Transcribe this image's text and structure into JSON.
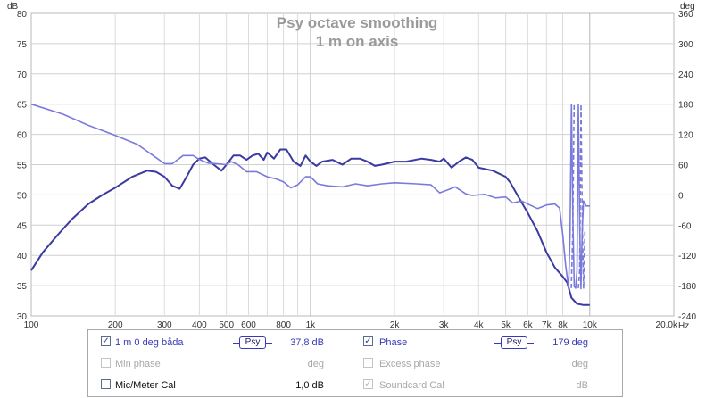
{
  "chart_data": {
    "type": "line",
    "title": "Psy octave smoothing",
    "subtitle": "1 m on axis",
    "left_axis": {
      "unit": "dB",
      "min": 30,
      "max": 80,
      "ticks": [
        "80",
        "75",
        "70",
        "65",
        "60",
        "55",
        "50",
        "45",
        "40",
        "35",
        "30"
      ]
    },
    "right_axis": {
      "unit": "deg",
      "min": -240,
      "max": 360,
      "ticks": [
        "360",
        "300",
        "240",
        "180",
        "120",
        "60",
        "0",
        "-60",
        "-120",
        "-180",
        "-240"
      ]
    },
    "x_axis": {
      "scale": "log",
      "min": 100,
      "max": 20000,
      "unit": "Hz",
      "tick_labels": [
        {
          "f": 100,
          "label": "100"
        },
        {
          "f": 200,
          "label": "200"
        },
        {
          "f": 300,
          "label": "300"
        },
        {
          "f": 400,
          "label": "400"
        },
        {
          "f": 500,
          "label": "500"
        },
        {
          "f": 600,
          "label": "600"
        },
        {
          "f": 800,
          "label": "800"
        },
        {
          "f": 1000,
          "label": "1k"
        },
        {
          "f": 2000,
          "label": "2k"
        },
        {
          "f": 3000,
          "label": "3k"
        },
        {
          "f": 4000,
          "label": "4k"
        },
        {
          "f": 5000,
          "label": "5k"
        },
        {
          "f": 6000,
          "label": "6k"
        },
        {
          "f": 7000,
          "label": "7k"
        },
        {
          "f": 8000,
          "label": "8k"
        },
        {
          "f": 10000,
          "label": "10k"
        },
        {
          "f": 20000,
          "label": "20,0k"
        }
      ]
    },
    "grid": true,
    "series": [
      {
        "name": "1 m 0 deg båda",
        "axis": "left",
        "color": "#3a3aa0",
        "points": [
          [
            100,
            37.5
          ],
          [
            110,
            40.5
          ],
          [
            125,
            43.5
          ],
          [
            140,
            46
          ],
          [
            160,
            48.5
          ],
          [
            180,
            50
          ],
          [
            200,
            51.2
          ],
          [
            230,
            53
          ],
          [
            260,
            54
          ],
          [
            280,
            53.8
          ],
          [
            300,
            53
          ],
          [
            320,
            51.5
          ],
          [
            340,
            51
          ],
          [
            360,
            53
          ],
          [
            380,
            55
          ],
          [
            400,
            56
          ],
          [
            420,
            56.2
          ],
          [
            450,
            55
          ],
          [
            480,
            54
          ],
          [
            500,
            55
          ],
          [
            530,
            56.5
          ],
          [
            560,
            56.5
          ],
          [
            590,
            55.8
          ],
          [
            620,
            56.5
          ],
          [
            650,
            56.8
          ],
          [
            680,
            55.8
          ],
          [
            700,
            57
          ],
          [
            740,
            56
          ],
          [
            780,
            57.5
          ],
          [
            820,
            57.5
          ],
          [
            870,
            55.5
          ],
          [
            920,
            54.8
          ],
          [
            960,
            56.5
          ],
          [
            1000,
            55.5
          ],
          [
            1050,
            54.8
          ],
          [
            1100,
            55.5
          ],
          [
            1200,
            55.8
          ],
          [
            1300,
            55
          ],
          [
            1400,
            56
          ],
          [
            1500,
            56
          ],
          [
            1600,
            55.5
          ],
          [
            1700,
            54.8
          ],
          [
            1800,
            55
          ],
          [
            2000,
            55.5
          ],
          [
            2200,
            55.5
          ],
          [
            2500,
            56
          ],
          [
            2700,
            55.8
          ],
          [
            2900,
            55.5
          ],
          [
            3000,
            56
          ],
          [
            3200,
            54.5
          ],
          [
            3400,
            55.5
          ],
          [
            3600,
            56.2
          ],
          [
            3800,
            55.8
          ],
          [
            4000,
            54.5
          ],
          [
            4500,
            54
          ],
          [
            5000,
            53
          ],
          [
            5200,
            52
          ],
          [
            5500,
            50
          ],
          [
            6000,
            47
          ],
          [
            6500,
            44
          ],
          [
            7000,
            40.5
          ],
          [
            7500,
            38
          ],
          [
            8000,
            36.5
          ],
          [
            8300,
            35.5
          ],
          [
            8600,
            33
          ],
          [
            9000,
            32
          ],
          [
            9500,
            31.8
          ],
          [
            10000,
            31.8
          ]
        ]
      },
      {
        "name": "Phase",
        "axis": "right",
        "color": "#7a7adc",
        "points": [
          [
            100,
            180
          ],
          [
            130,
            160
          ],
          [
            160,
            138
          ],
          [
            200,
            118
          ],
          [
            240,
            100
          ],
          [
            270,
            80
          ],
          [
            300,
            62
          ],
          [
            320,
            62
          ],
          [
            350,
            78
          ],
          [
            380,
            78
          ],
          [
            400,
            70
          ],
          [
            430,
            63
          ],
          [
            460,
            62
          ],
          [
            500,
            60
          ],
          [
            520,
            66
          ],
          [
            550,
            60
          ],
          [
            590,
            46
          ],
          [
            640,
            46
          ],
          [
            700,
            36
          ],
          [
            750,
            32
          ],
          [
            800,
            26
          ],
          [
            850,
            14
          ],
          [
            900,
            20
          ],
          [
            960,
            36
          ],
          [
            1000,
            36
          ],
          [
            1060,
            22
          ],
          [
            1150,
            18
          ],
          [
            1300,
            16
          ],
          [
            1450,
            22
          ],
          [
            1600,
            18
          ],
          [
            1800,
            22
          ],
          [
            2000,
            24
          ],
          [
            2400,
            22
          ],
          [
            2700,
            20
          ],
          [
            2900,
            4
          ],
          [
            3100,
            10
          ],
          [
            3300,
            16
          ],
          [
            3600,
            2
          ],
          [
            3800,
            -1
          ],
          [
            4200,
            1
          ],
          [
            4600,
            -6
          ],
          [
            5000,
            -4
          ],
          [
            5300,
            -16
          ],
          [
            5700,
            -12
          ],
          [
            6100,
            -20
          ],
          [
            6500,
            -27
          ],
          [
            7000,
            -20
          ],
          [
            7500,
            -18
          ],
          [
            7800,
            -26
          ],
          [
            8000,
            -78
          ],
          [
            8200,
            -140
          ],
          [
            8400,
            -185
          ],
          [
            8500,
            -80
          ],
          [
            8600,
            180
          ],
          [
            8700,
            -50
          ],
          [
            8800,
            -182
          ],
          [
            8900,
            -185
          ],
          [
            9000,
            -150
          ],
          [
            9100,
            180
          ],
          [
            9200,
            -60
          ],
          [
            9300,
            -186
          ],
          [
            9400,
            -70
          ],
          [
            9500,
            -12
          ],
          [
            9700,
            -22
          ],
          [
            10000,
            -22
          ]
        ],
        "dashed_segments": [
          [
            8300,
            8650
          ],
          [
            8850,
            9400
          ]
        ]
      }
    ]
  },
  "legend": {
    "row1": {
      "left_checked": "✓",
      "left_label": "1 m 0 deg båda",
      "left_psy": "Psy",
      "left_value": "37,8 dB",
      "right_checked": "✓",
      "right_label": "Phase",
      "right_psy": "Psy",
      "right_value": "179 deg"
    },
    "row2": {
      "left_label": "Min phase",
      "left_value": "deg",
      "right_label": "Excess phase",
      "right_value": "deg"
    },
    "row3": {
      "left_label": "Mic/Meter Cal",
      "left_value": "1,0 dB",
      "right_checked": "✓",
      "right_label": "Soundcard Cal",
      "right_value": "dB"
    }
  }
}
